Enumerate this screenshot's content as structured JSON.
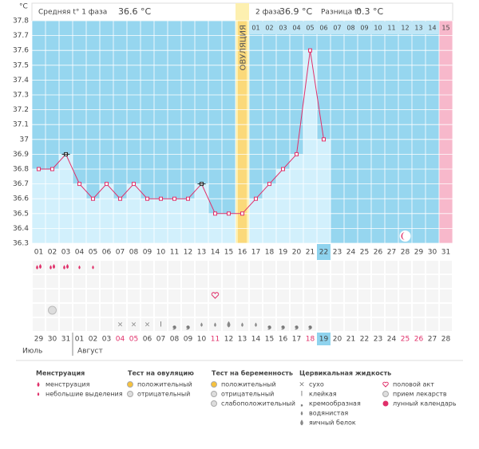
{
  "header": {
    "unit": "°С",
    "phase1": "Средняя t° 1 фаза",
    "phase1_value": "36.6 °C",
    "phase2": "2 фаза",
    "phase2_value": "36.9 °C",
    "diff": "Разница t°",
    "diff_value": "0.3 °C"
  },
  "chart_data": {
    "type": "line",
    "ovulation_label": "ОВУЛЯЦИЯ",
    "categories": [
      "01",
      "02",
      "03",
      "04",
      "05",
      "06",
      "07",
      "08",
      "09",
      "10",
      "11",
      "12",
      "13",
      "14",
      "15",
      "16",
      "17",
      "18",
      "19",
      "20",
      "21",
      "22",
      "23",
      "24",
      "25",
      "26",
      "27",
      "28",
      "29",
      "30",
      "31"
    ],
    "values": [
      36.8,
      36.8,
      36.9,
      36.7,
      36.6,
      36.7,
      36.6,
      36.7,
      36.6,
      36.6,
      36.6,
      36.6,
      36.7,
      36.5,
      36.5,
      36.5,
      36.6,
      36.7,
      36.8,
      36.9,
      37.6,
      37.0,
      null,
      null,
      null,
      null,
      null,
      null,
      null,
      null,
      null
    ],
    "color": "#e0306a",
    "ylim": [
      36.3,
      37.8
    ],
    "yticks": [
      36.3,
      36.4,
      36.5,
      36.6,
      36.7,
      36.8,
      36.9,
      37,
      37.1,
      37.2,
      37.3,
      37.4,
      37.5,
      37.6,
      37.7,
      37.8
    ],
    "grid": true
  },
  "phase2_days": [
    "01",
    "02",
    "03",
    "04",
    "05",
    "06",
    "07",
    "08",
    "09",
    "10",
    "11",
    "12",
    "13",
    "14",
    "15"
  ],
  "dates": [
    "29",
    "30",
    "31",
    "01",
    "02",
    "03",
    "04",
    "05",
    "06",
    "07",
    "08",
    "09",
    "10",
    "11",
    "12",
    "13",
    "14",
    "15",
    "16",
    "17",
    "18",
    "19",
    "20",
    "21",
    "22",
    "23",
    "24",
    "25",
    "26",
    "27",
    "28"
  ],
  "months": [
    "Июль",
    "Август"
  ],
  "legend": [
    {
      "title": "Менструация",
      "items": [
        "менструация",
        "небольшие выделения"
      ]
    },
    {
      "title": "Тест на овуляцию",
      "items": [
        "положительный",
        "отрицательный"
      ]
    },
    {
      "title": "Тест на беременность",
      "items": [
        "положительный",
        "отрицательный",
        "слабоположительный"
      ]
    },
    {
      "title": "Цервикальная жидкость",
      "items": [
        "сухо",
        "клейкая",
        "кремообразная",
        "водянистая",
        "яичный белок"
      ]
    },
    {
      "items": [
        "половой акт",
        "прием лекарств",
        "лунный календарь"
      ]
    }
  ]
}
